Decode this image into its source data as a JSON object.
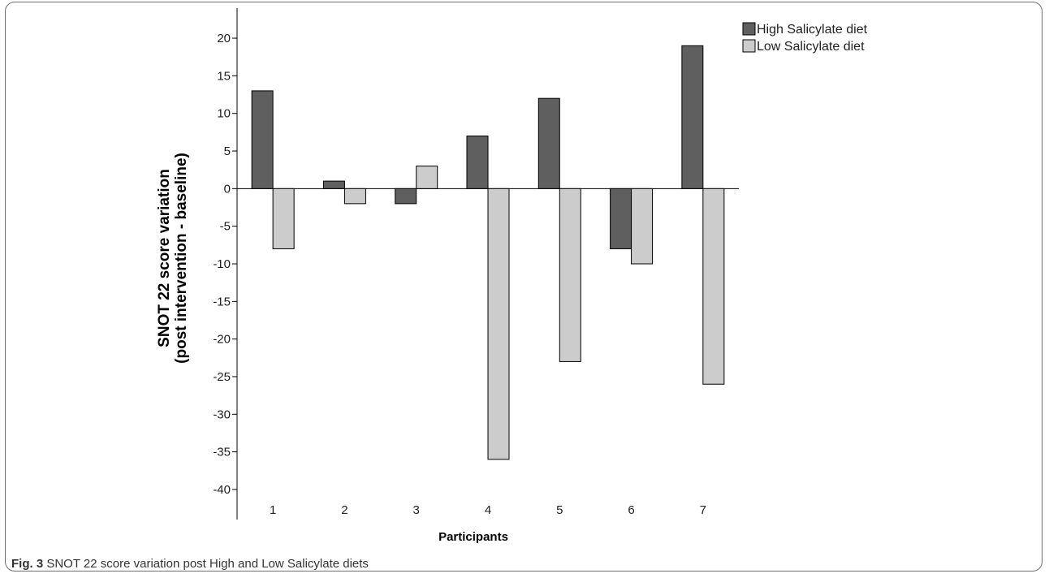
{
  "caption": {
    "label": "Fig. 3",
    "text": "SNOT 22 score variation post High and Low Salicylate diets"
  },
  "chart_data": {
    "type": "bar",
    "title": "",
    "xlabel": "Participants",
    "ylabel": [
      "SNOT 22 score variation",
      "(post intervention - baseline)"
    ],
    "categories": [
      "1",
      "2",
      "3",
      "4",
      "5",
      "6",
      "7"
    ],
    "ylim": [
      -44,
      24
    ],
    "yticks": [
      20,
      15,
      10,
      5,
      0,
      -5,
      -10,
      -15,
      -20,
      -25,
      -30,
      -35,
      -40
    ],
    "grid": false,
    "legend_position": "top-right",
    "series": [
      {
        "name": "High Salicylate diet",
        "color": "#5f5f5f",
        "values": [
          13,
          1,
          -2,
          7,
          12,
          -8,
          19
        ]
      },
      {
        "name": "Low Salicylate diet",
        "color": "#cccccc",
        "values": [
          -8,
          -2,
          3,
          -36,
          -23,
          -10,
          -26
        ]
      }
    ]
  }
}
